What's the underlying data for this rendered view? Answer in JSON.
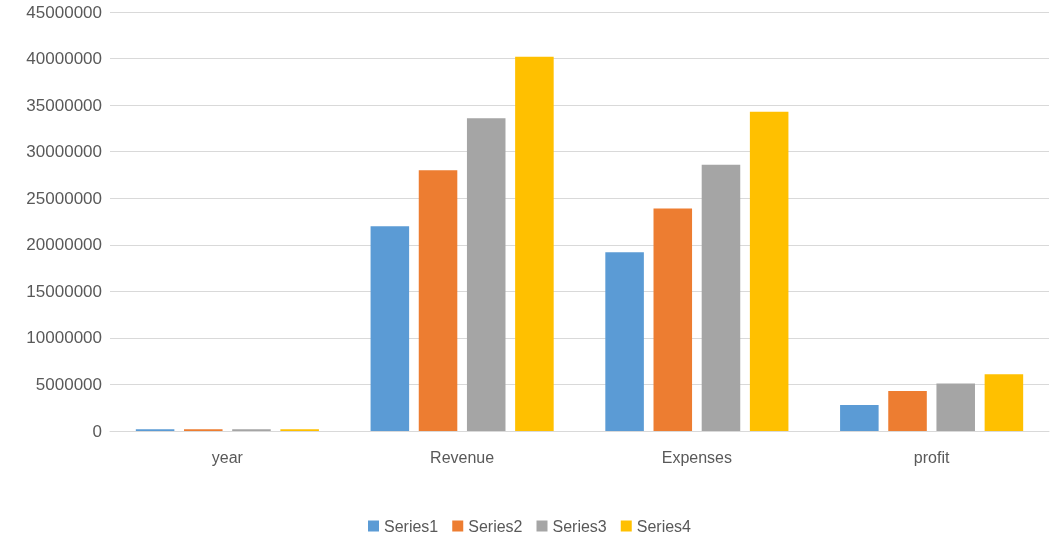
{
  "chart_data": {
    "type": "bar",
    "categories": [
      "year",
      "Revenue",
      "Expenses",
      "profit"
    ],
    "series": [
      {
        "name": "Series1",
        "color": "#5b9bd5",
        "values": [
          200000,
          22000000,
          19200000,
          2800000
        ]
      },
      {
        "name": "Series2",
        "color": "#ed7d31",
        "values": [
          200000,
          28000000,
          23900000,
          4300000
        ]
      },
      {
        "name": "Series3",
        "color": "#a5a5a5",
        "values": [
          200000,
          33600000,
          28600000,
          5100000
        ]
      },
      {
        "name": "Series4",
        "color": "#ffc000",
        "values": [
          200000,
          40200000,
          34300000,
          6100000
        ]
      }
    ],
    "ylim": [
      0,
      45000000
    ],
    "yticks": [
      0,
      5000000,
      10000000,
      15000000,
      20000000,
      25000000,
      30000000,
      35000000,
      40000000,
      45000000
    ],
    "grid": "y",
    "legend": "bottom"
  }
}
